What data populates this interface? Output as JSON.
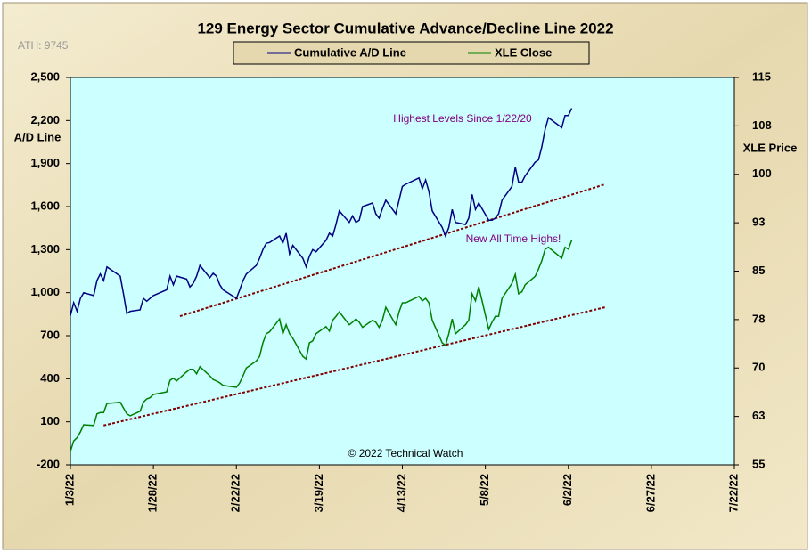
{
  "chart_data": {
    "type": "line",
    "title": "129 Energy Sector Cumulative Advance/Decline Line 2022",
    "annotations": [
      "ATH: 9745",
      "Highest Levels Since 1/22/20",
      "New All Time Highs!",
      "© 2022 Technical Watch"
    ],
    "ylabel": "A/D Line",
    "y2label": "XLE Price",
    "x": [
      "1/3/22",
      "1/4/22",
      "1/5/22",
      "1/6/22",
      "1/7/22",
      "1/10/22",
      "1/11/22",
      "1/12/22",
      "1/13/22",
      "1/14/22",
      "1/18/22",
      "1/19/22",
      "1/20/22",
      "1/21/22",
      "1/24/22",
      "1/25/22",
      "1/26/22",
      "1/27/22",
      "1/28/22",
      "2/1/22",
      "2/2/22",
      "2/3/22",
      "2/4/22",
      "2/7/22",
      "2/8/22",
      "2/9/22",
      "2/10/22",
      "2/11/22",
      "2/14/22",
      "2/15/22",
      "2/16/22",
      "2/17/22",
      "2/18/22",
      "2/22/22",
      "2/23/22",
      "2/24/22",
      "2/25/22",
      "2/28/22",
      "3/1/22",
      "3/2/22",
      "3/3/22",
      "3/4/22",
      "3/7/22",
      "3/8/22",
      "3/9/22",
      "3/10/22",
      "3/11/22",
      "3/14/22",
      "3/15/22",
      "3/16/22",
      "3/17/22",
      "3/18/22",
      "3/21/22",
      "3/22/22",
      "3/23/22",
      "3/24/22",
      "3/25/22",
      "3/28/22",
      "3/29/22",
      "3/30/22",
      "3/31/22",
      "4/1/22",
      "4/4/22",
      "4/5/22",
      "4/6/22",
      "4/7/22",
      "4/8/22",
      "4/11/22",
      "4/12/22",
      "4/13/22",
      "4/14/22",
      "4/18/22",
      "4/19/22",
      "4/20/22",
      "4/21/22",
      "4/22/22",
      "4/25/22",
      "4/26/22",
      "4/27/22",
      "4/28/22",
      "4/29/22",
      "5/2/22",
      "5/3/22",
      "5/4/22",
      "5/5/22",
      "5/6/22",
      "5/9/22",
      "5/10/22",
      "5/11/22",
      "5/12/22",
      "5/13/22",
      "5/16/22",
      "5/17/22",
      "5/18/22",
      "5/19/22",
      "5/20/22",
      "5/23/22",
      "5/24/22",
      "5/25/22",
      "5/26/22",
      "5/27/22",
      "5/31/22",
      "6/1/22",
      "6/2/22",
      "6/3/22"
    ],
    "series": [
      {
        "name": "Cumulative A/D Line",
        "color": "#000080",
        "axis": "y",
        "values": [
          840,
          930,
          870,
          960,
          1000,
          980,
          1085,
          1130,
          1085,
          1180,
          1115,
          990,
          855,
          870,
          880,
          960,
          940,
          960,
          980,
          1020,
          1115,
          1055,
          1115,
          1095,
          1040,
          1065,
          1115,
          1190,
          1105,
          1135,
          1115,
          1055,
          1020,
          960,
          1020,
          1085,
          1130,
          1190,
          1240,
          1300,
          1345,
          1350,
          1395,
          1345,
          1415,
          1270,
          1330,
          1240,
          1180,
          1255,
          1300,
          1285,
          1365,
          1415,
          1395,
          1475,
          1570,
          1490,
          1535,
          1490,
          1505,
          1600,
          1625,
          1550,
          1520,
          1585,
          1645,
          1550,
          1645,
          1740,
          1755,
          1800,
          1725,
          1785,
          1705,
          1570,
          1455,
          1395,
          1455,
          1580,
          1490,
          1475,
          1520,
          1685,
          1580,
          1625,
          1505,
          1505,
          1520,
          1550,
          1645,
          1740,
          1875,
          1770,
          1770,
          1815,
          1910,
          1925,
          2015,
          2140,
          2220,
          2150,
          2235,
          2235,
          2285
        ]
      },
      {
        "name": "XLE Close",
        "color": "#008000",
        "axis": "y2",
        "values": [
          57.1,
          58.7,
          59.2,
          60.1,
          61.2,
          61.1,
          62.9,
          63.1,
          63.1,
          64.5,
          64.7,
          63.8,
          62.9,
          62.6,
          63.3,
          64.7,
          65.2,
          65.4,
          65.9,
          66.3,
          68.1,
          68.4,
          68.0,
          69.4,
          69.8,
          69.8,
          69.1,
          70.2,
          68.8,
          68.2,
          68.0,
          67.7,
          67.3,
          67.0,
          67.7,
          68.8,
          70.0,
          71.1,
          71.8,
          73.9,
          75.3,
          75.6,
          77.6,
          75.3,
          76.7,
          75.3,
          74.6,
          71.8,
          71.4,
          73.9,
          74.2,
          75.3,
          76.4,
          75.7,
          77.4,
          78.0,
          78.7,
          76.7,
          77.1,
          77.6,
          77.1,
          76.3,
          77.4,
          77.1,
          76.3,
          77.4,
          79.4,
          76.7,
          78.7,
          80.1,
          80.1,
          81.1,
          80.4,
          80.8,
          80.1,
          77.4,
          73.9,
          73.5,
          75.3,
          77.6,
          75.3,
          76.7,
          77.4,
          81.5,
          80.4,
          82.6,
          76.0,
          77.1,
          78.0,
          78.0,
          80.8,
          83.1,
          84.5,
          81.5,
          81.8,
          82.9,
          84.2,
          85.3,
          86.6,
          88.4,
          88.7,
          87.0,
          88.7,
          88.4,
          89.8
        ]
      }
    ],
    "trendlines": [
      {
        "color": "#800000",
        "axis": "y",
        "x": [
          "2/5/22",
          "6/13/22"
        ],
        "values": [
          836,
          1755
        ]
      },
      {
        "color": "#800000",
        "axis": "y2",
        "x": [
          "1/13/22",
          "6/13/22"
        ],
        "values": [
          61.1,
          79.4
        ]
      }
    ],
    "xlim": [
      "1/3/22",
      "7/22/22"
    ],
    "xticks": [
      "1/3/22",
      "1/28/22",
      "2/22/22",
      "3/19/22",
      "4/13/22",
      "5/8/22",
      "6/2/22",
      "6/27/22",
      "7/22/22"
    ],
    "ylim": [
      -200,
      2500
    ],
    "yticks": [
      -200,
      100,
      400,
      700,
      {
        "value": 1000,
        "label": "1,000"
      },
      {
        "value": 1300,
        "label": "1,300"
      },
      {
        "value": 1600,
        "label": "1,600"
      },
      {
        "value": 1900,
        "label": "1,900"
      },
      {
        "value": 2200,
        "label": "2,200"
      },
      {
        "value": 2500,
        "label": "2,500"
      }
    ],
    "y2lim": [
      55,
      115
    ],
    "y2ticks": [
      55,
      {
        "value": 62.5,
        "label": "63"
      },
      70,
      {
        "value": 77.5,
        "label": "78"
      },
      85,
      {
        "value": 92.5,
        "label": "93"
      },
      100,
      {
        "value": 107.5,
        "label": "108"
      },
      115
    ],
    "plot_background": "#ccffff"
  }
}
